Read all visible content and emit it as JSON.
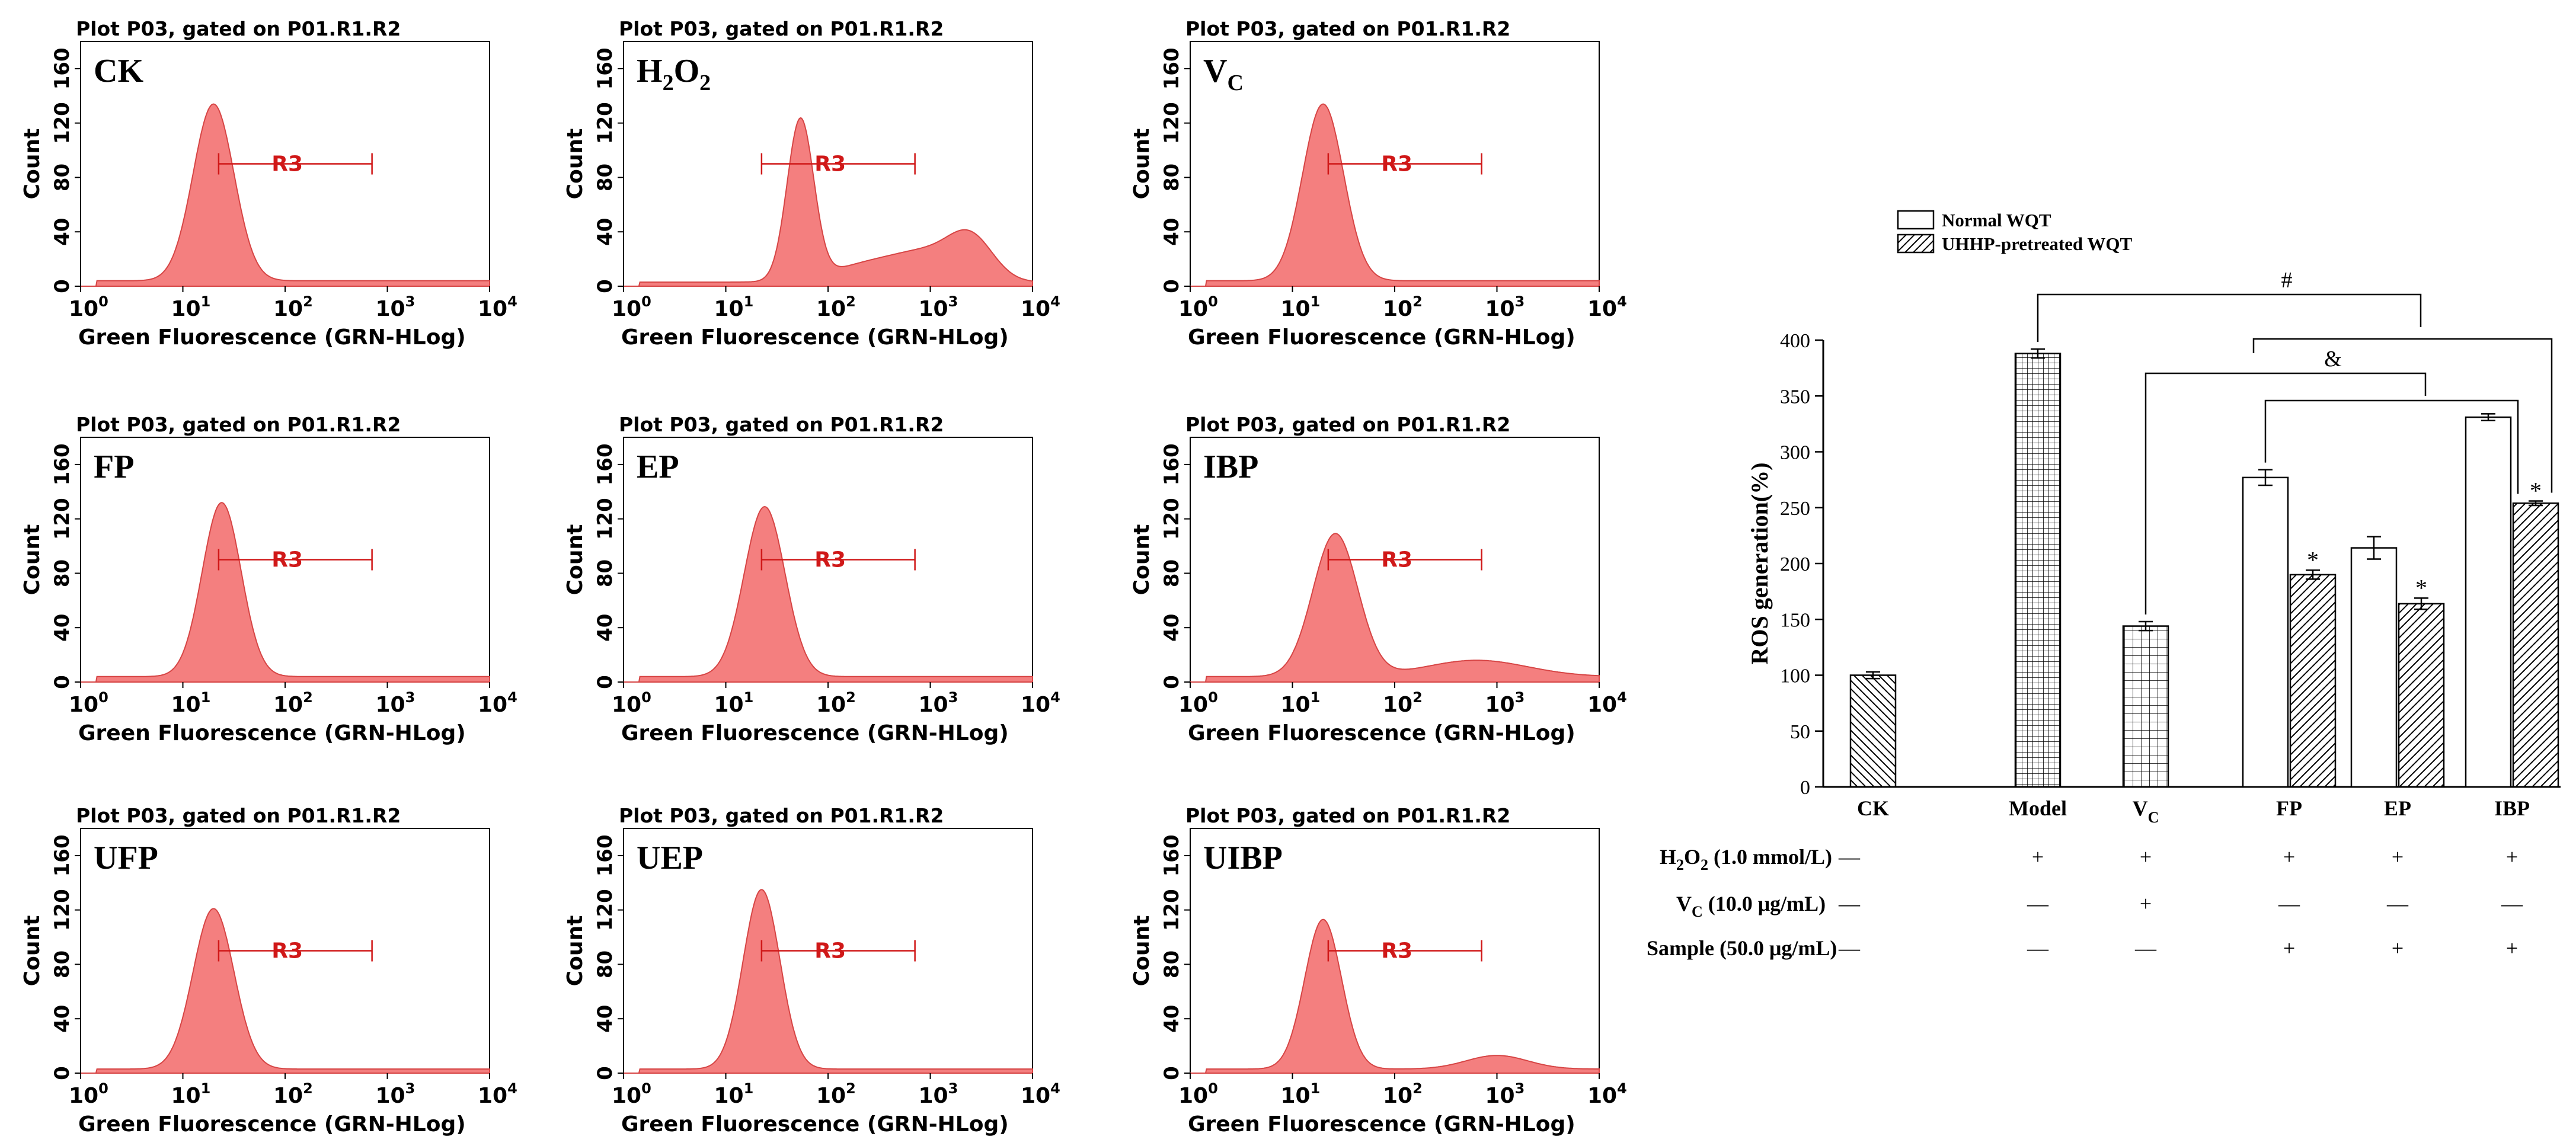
{
  "colors": {
    "histogram_fill": "#f47f7f",
    "histogram_stroke": "#d64545",
    "gate": "#d01818",
    "axis": "#000000"
  },
  "flow": {
    "plot_title": "Plot P03, gated on P01.R1.R2",
    "xlabel": "Green Fluorescence (GRN-HLog)",
    "ylabel": "Count",
    "yticks": [
      0,
      40,
      80,
      120,
      160
    ],
    "xtick_base": "10",
    "xtick_exponents": [
      "0",
      "1",
      "2",
      "3",
      "4"
    ],
    "gate_label": "R3",
    "panels": [
      {
        "label": "CK",
        "gate": [
          1.35,
          2.85
        ],
        "peaks": [
          [
            1.3,
            130,
            0.2
          ]
        ],
        "tail": 4
      },
      {
        "label": "H",
        "label_sub_1": "2",
        "label_mid": "O",
        "label_sub_2": "2",
        "gate": [
          1.35,
          2.85
        ],
        "peaks": [
          [
            1.73,
            118,
            0.13
          ],
          [
            2.45,
            14,
            0.4
          ],
          [
            3.4,
            30,
            0.22
          ],
          [
            3.0,
            16,
            0.3
          ]
        ],
        "tail": 3
      },
      {
        "label": "V",
        "label_sub": "C",
        "gate": [
          1.35,
          2.85
        ],
        "peaks": [
          [
            1.3,
            130,
            0.2
          ]
        ],
        "tail": 4
      },
      {
        "label": "FP",
        "gate": [
          1.35,
          2.85
        ],
        "peaks": [
          [
            1.38,
            128,
            0.19
          ]
        ],
        "tail": 4
      },
      {
        "label": "EP",
        "gate": [
          1.35,
          2.85
        ],
        "peaks": [
          [
            1.38,
            125,
            0.2
          ]
        ],
        "tail": 4
      },
      {
        "label": "IBP",
        "gate": [
          1.35,
          2.85
        ],
        "peaks": [
          [
            1.42,
            105,
            0.22
          ],
          [
            2.8,
            12,
            0.5
          ]
        ],
        "tail": 4
      },
      {
        "label": "UFP",
        "gate": [
          1.35,
          2.85
        ],
        "peaks": [
          [
            1.3,
            118,
            0.2
          ]
        ],
        "tail": 3
      },
      {
        "label": "UEP",
        "gate": [
          1.35,
          2.85
        ],
        "peaks": [
          [
            1.35,
            132,
            0.18
          ]
        ],
        "tail": 3
      },
      {
        "label": "UIBP",
        "gate": [
          1.35,
          2.85
        ],
        "peaks": [
          [
            1.3,
            110,
            0.18
          ],
          [
            3.0,
            10,
            0.3
          ]
        ],
        "tail": 3
      }
    ]
  },
  "chart_data": {
    "type": "bar",
    "ylabel": "ROS generation(%)",
    "ylim": [
      0,
      400
    ],
    "yticks": [
      0,
      50,
      100,
      150,
      200,
      250,
      300,
      350,
      400
    ],
    "legend": {
      "placement": "top-left",
      "entries": [
        "Normal WQT",
        "UHHP-pretreated WQT"
      ]
    },
    "categories": [
      "CK",
      "Model",
      "V",
      "FP",
      "EP",
      "IBP"
    ],
    "category_subscripts": [
      "",
      "",
      "C",
      "",
      "",
      ""
    ],
    "bars": [
      {
        "category": "CK",
        "series": "single",
        "pattern": "diagonal-left",
        "value": 100,
        "error": 3
      },
      {
        "category": "Model",
        "series": "single",
        "pattern": "grid-fine",
        "value": 388,
        "error": 4
      },
      {
        "category": "V",
        "series": "single",
        "pattern": "grid-coarse",
        "value": 144,
        "error": 4
      },
      {
        "category": "FP",
        "series": "Normal WQT",
        "pattern": "open",
        "value": 277,
        "error": 7
      },
      {
        "category": "FP",
        "series": "UHHP-pretreated WQT",
        "pattern": "hatch",
        "value": 190,
        "error": 4,
        "star": "*"
      },
      {
        "category": "EP",
        "series": "Normal WQT",
        "pattern": "open",
        "value": 214,
        "error": 10
      },
      {
        "category": "EP",
        "series": "UHHP-pretreated WQT",
        "pattern": "hatch",
        "value": 164,
        "error": 5,
        "star": "*"
      },
      {
        "category": "IBP",
        "series": "Normal WQT",
        "pattern": "open",
        "value": 331,
        "error": 3
      },
      {
        "category": "IBP",
        "series": "UHHP-pretreated WQT",
        "pattern": "hatch",
        "value": 254,
        "error": 2,
        "star": "*"
      }
    ],
    "brackets": [
      {
        "symbol": "#"
      },
      {
        "symbol": "&"
      }
    ],
    "treatments": {
      "rows": [
        {
          "label": "H",
          "label_sub": "2",
          "label_mid": "O",
          "label_sub2": "2",
          "label_tail": " (1.0 mmol/L)",
          "values": [
            "—",
            "+",
            "+",
            "+",
            "+",
            "+"
          ]
        },
        {
          "label": "V",
          "label_sub": "C",
          "label_tail": " (10.0 μg/mL)",
          "values": [
            "—",
            "—",
            "+",
            "—",
            "—",
            "—"
          ]
        },
        {
          "label": "Sample",
          "label_sub": "",
          "label_tail": " (50.0 μg/mL)",
          "values": [
            "—",
            "—",
            "—",
            "+",
            "+",
            "+"
          ]
        }
      ]
    }
  }
}
